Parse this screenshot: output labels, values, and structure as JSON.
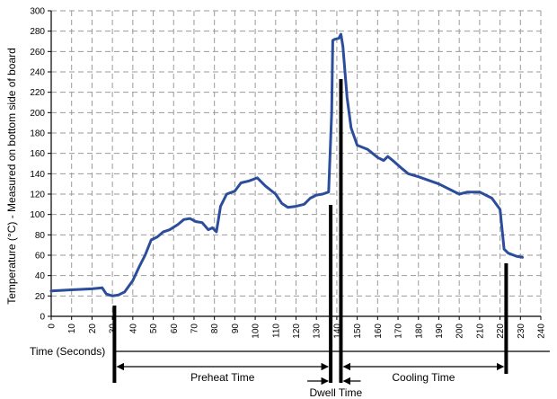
{
  "chart_data": {
    "type": "line",
    "xlabel": "Time (Seconds)",
    "ylabel": "Temperature (°C) - Measured on bottom side of board",
    "xlim": [
      0,
      240
    ],
    "ylim": [
      0,
      300
    ],
    "xticks": [
      0,
      10,
      20,
      30,
      40,
      50,
      60,
      70,
      80,
      90,
      100,
      110,
      120,
      130,
      140,
      150,
      160,
      170,
      180,
      190,
      200,
      210,
      220,
      230,
      240
    ],
    "yticks": [
      0,
      20,
      40,
      60,
      80,
      100,
      120,
      140,
      160,
      180,
      200,
      220,
      240,
      260,
      280,
      300
    ],
    "grid": true,
    "series": [
      {
        "color": "#2b4d9b",
        "x": [
          0,
          10,
          20,
          25,
          27,
          30,
          33,
          36,
          40,
          43,
          46,
          49,
          52,
          55,
          58,
          62,
          65,
          68,
          71,
          74,
          77,
          79,
          81,
          83,
          86,
          90,
          93,
          97,
          101,
          105,
          110,
          113,
          116,
          120,
          124,
          127,
          130,
          133,
          136,
          137.5,
          138,
          139,
          141,
          142,
          143,
          145,
          147,
          150,
          155,
          160,
          163,
          165,
          168,
          172,
          175,
          180,
          190,
          196,
          200,
          204,
          210,
          216,
          220,
          222,
          224,
          228,
          231
        ],
        "y": [
          25,
          26,
          27,
          28,
          22,
          20,
          21,
          24,
          35,
          48,
          60,
          75,
          78,
          83,
          85,
          90,
          95,
          96,
          93,
          92,
          85,
          87,
          83,
          108,
          120,
          123,
          131,
          133,
          136,
          128,
          120,
          111,
          107,
          108,
          110,
          116,
          119,
          120,
          122,
          200,
          271,
          272,
          273,
          277,
          265,
          215,
          185,
          168,
          164,
          156,
          153,
          157,
          152,
          145,
          140,
          137,
          130,
          124,
          120,
          122,
          122,
          116,
          105,
          66,
          62,
          59,
          58
        ]
      }
    ],
    "markers": {
      "preheat_start": 31,
      "preheat_end": 137,
      "dwell_end": 142,
      "cooling_end": 223
    },
    "annotations": {
      "preheat": "Preheat Time",
      "dwell": "Dwell Time",
      "cooling": "Cooling Time"
    }
  }
}
